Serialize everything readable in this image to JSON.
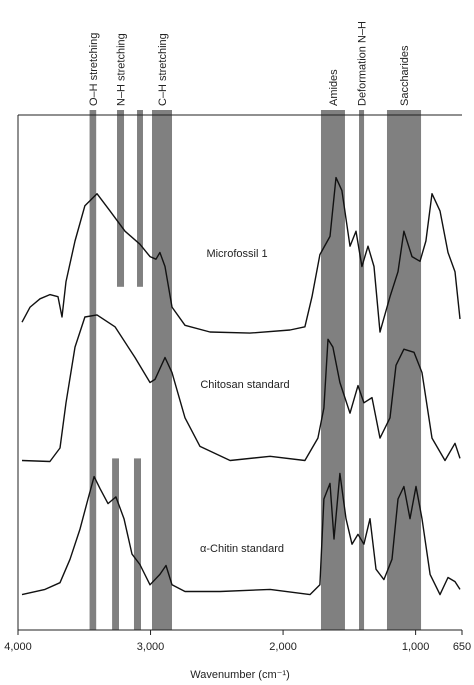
{
  "chart_data": {
    "type": "line",
    "x_label": "Wavenumber (cm⁻¹)",
    "xlim": [
      4000,
      650
    ],
    "xticks": [
      {
        "value": 4000,
        "label": "4,000"
      },
      {
        "value": 3000,
        "label": "3,000"
      },
      {
        "value": 2000,
        "label": "2,000"
      },
      {
        "value": 1000,
        "label": "1,000"
      },
      650
    ],
    "ylim": [
      0,
      100
    ],
    "band_color": "#808080",
    "bands": [
      {
        "label": "O–H stretching",
        "ranges": [
          {
            "x": [
              3460,
              3410
            ],
            "y": [
              0,
              100
            ]
          }
        ]
      },
      {
        "label": "N–H stretching",
        "ranges": [
          {
            "x": [
              3253,
              3200
            ],
            "y": [
              66,
              100
            ]
          },
          {
            "x": [
              3102,
              3057
            ],
            "y": [
              66,
              100
            ]
          },
          {
            "x": [
              3290,
              3238
            ],
            "y": [
              0,
              33
            ]
          },
          {
            "x": [
              3125,
              3072
            ],
            "y": [
              0,
              33
            ]
          }
        ]
      },
      {
        "label": "C–H stretching",
        "ranges": [
          {
            "x": [
              2989,
              2838
            ],
            "y": [
              0,
              100
            ]
          }
        ]
      },
      {
        "label": "Amides",
        "ranges": [
          {
            "x": [
              1714,
              1533
            ],
            "y": [
              0,
              100
            ]
          }
        ]
      },
      {
        "label": "Deformation N–H",
        "ranges": [
          {
            "x": [
              1427,
              1389
            ],
            "y": [
              0,
              100
            ]
          }
        ]
      },
      {
        "label": "Saccharides",
        "ranges": [
          {
            "x": [
              1216,
              959
            ],
            "y": [
              0,
              100
            ]
          }
        ]
      }
    ],
    "series": [
      {
        "name": "Microfossil 1",
        "color": "#111111",
        "x": [
          3970,
          3909,
          3834,
          3759,
          3698,
          3668,
          3638,
          3570,
          3495,
          3404,
          3306,
          3193,
          3080,
          3004,
          2959,
          2929,
          2891,
          2838,
          2740,
          2551,
          2250,
          1948,
          1835,
          1782,
          1722,
          1646,
          1601,
          1556,
          1495,
          1450,
          1405,
          1359,
          1314,
          1269,
          1193,
          1133,
          1088,
          1027,
          967,
          922,
          876,
          816,
          756,
          703,
          665
        ],
        "values": [
          59.2,
          62.1,
          63.7,
          64.5,
          64.1,
          60.2,
          67.0,
          74.8,
          81.6,
          83.9,
          80.6,
          76.7,
          74.2,
          71.8,
          71.3,
          72.6,
          69.9,
          62.1,
          58.6,
          57.3,
          57.1,
          57.7,
          58.3,
          64.1,
          72.2,
          75.7,
          87.0,
          84.5,
          73.8,
          76.7,
          69.9,
          73.8,
          69.9,
          57.3,
          64.1,
          68.9,
          76.7,
          71.8,
          70.9,
          74.8,
          83.9,
          80.6,
          72.6,
          68.9,
          59.8
        ]
      },
      {
        "name": "Chitosan standard",
        "color": "#111111",
        "x": [
          3970,
          3759,
          3683,
          3638,
          3570,
          3495,
          3404,
          3268,
          3117,
          3004,
          2966,
          2891,
          2838,
          2740,
          2627,
          2400,
          2098,
          1835,
          1737,
          1692,
          1661,
          1624,
          1571,
          1495,
          1435,
          1390,
          1329,
          1269,
          1193,
          1148,
          1088,
          1012,
          952,
          876,
          778,
          703,
          665
        ],
        "values": [
          32.6,
          32.4,
          35.0,
          43.7,
          54.4,
          60.2,
          60.6,
          58.3,
          52.4,
          47.6,
          48.2,
          52.4,
          49.5,
          40.8,
          35.3,
          32.6,
          33.4,
          32.6,
          36.9,
          42.7,
          55.9,
          54.4,
          47.6,
          41.7,
          47.0,
          43.7,
          44.7,
          36.9,
          40.8,
          50.9,
          54.0,
          53.4,
          49.5,
          36.9,
          32.6,
          35.9,
          33.0
        ]
      },
      {
        "name": "α-Chitin standard",
        "color": "#111111",
        "x": [
          3970,
          3796,
          3683,
          3608,
          3532,
          3472,
          3426,
          3381,
          3321,
          3261,
          3200,
          3140,
          3080,
          3004,
          2929,
          2883,
          2838,
          2740,
          2476,
          2098,
          1797,
          1722,
          1692,
          1646,
          1616,
          1571,
          1525,
          1480,
          1435,
          1390,
          1344,
          1299,
          1239,
          1178,
          1133,
          1088,
          1042,
          997,
          952,
          891,
          816,
          756,
          703,
          665
        ],
        "values": [
          6.8,
          7.8,
          9.1,
          13.6,
          19.4,
          25.2,
          29.5,
          27.2,
          24.3,
          25.6,
          21.4,
          14.6,
          12.6,
          8.7,
          10.7,
          12.4,
          8.7,
          7.4,
          7.4,
          7.8,
          6.8,
          8.7,
          25.2,
          28.2,
          17.5,
          30.1,
          21.4,
          16.5,
          18.4,
          16.5,
          21.4,
          11.7,
          9.7,
          13.6,
          25.2,
          27.6,
          21.4,
          27.6,
          21.4,
          10.7,
          6.8,
          10.1,
          9.3,
          7.8
        ]
      }
    ]
  }
}
